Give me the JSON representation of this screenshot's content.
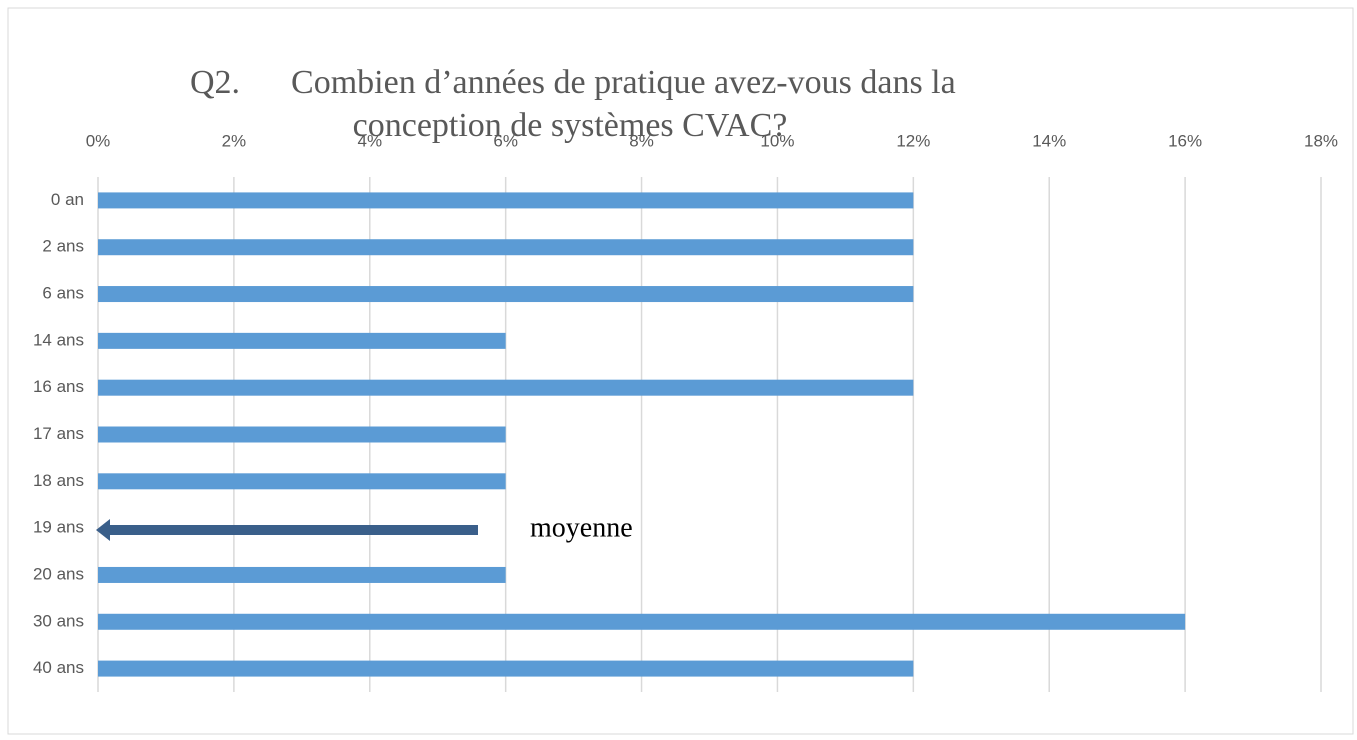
{
  "chart_data": {
    "type": "bar",
    "orientation": "horizontal",
    "title_lines": [
      "Q2.      Combien d’années de pratique avez-vous dans la",
      "conception de systèmes CVAC?"
    ],
    "categories": [
      "0 an",
      "2 ans",
      "6 ans",
      "14 ans",
      "16 ans",
      "17 ans",
      "18 ans",
      "19 ans",
      "20 ans",
      "30 ans",
      "40 ans"
    ],
    "values": [
      12,
      12,
      12,
      6,
      12,
      6,
      6,
      null,
      6,
      16,
      12
    ],
    "color": "#5b9bd5",
    "xlim": [
      0,
      18
    ],
    "xticks": [
      {
        "value": 0,
        "label": "0%"
      },
      {
        "value": 2,
        "label": "2%"
      },
      {
        "value": 4,
        "label": "4%"
      },
      {
        "value": 6,
        "label": "6%"
      },
      {
        "value": 8,
        "label": "8%"
      },
      {
        "value": 10,
        "label": "10%"
      },
      {
        "value": 12,
        "label": "12%"
      },
      {
        "value": 14,
        "label": "14%"
      },
      {
        "value": 16,
        "label": "16%"
      },
      {
        "value": 18,
        "label": "18%"
      }
    ],
    "grid": true,
    "annotation": "moyenne"
  }
}
